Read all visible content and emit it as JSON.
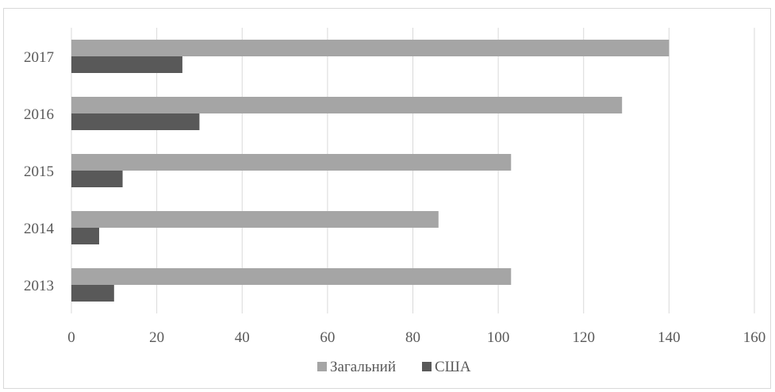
{
  "chart_data": {
    "type": "bar",
    "orientation": "horizontal",
    "title": "",
    "xlabel": "",
    "ylabel": "",
    "categories": [
      "2013",
      "2014",
      "2015",
      "2016",
      "2017"
    ],
    "series": [
      {
        "name": "Загальний",
        "color": "#a5a5a5",
        "values": [
          103,
          86,
          103,
          129,
          140
        ]
      },
      {
        "name": "США",
        "color": "#595959",
        "values": [
          10,
          6.5,
          12,
          30,
          26
        ]
      }
    ],
    "xlim": [
      0,
      160
    ],
    "xticks": [
      "0",
      "20",
      "40",
      "60",
      "80",
      "100",
      "120",
      "140",
      "160"
    ],
    "grid": "vertical",
    "legend": "bottom-center"
  }
}
